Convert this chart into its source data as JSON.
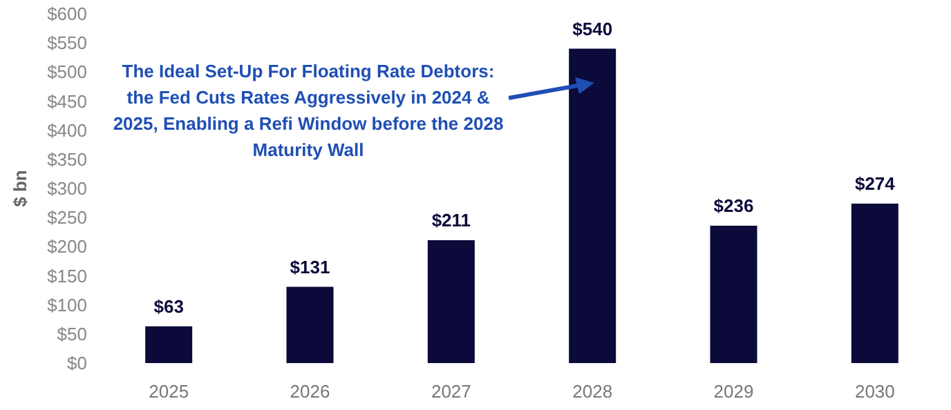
{
  "chart_data": {
    "type": "bar",
    "ylabel": "$ bn",
    "categories": [
      "2025",
      "2026",
      "2027",
      "2028",
      "2029",
      "2030"
    ],
    "values": [
      63,
      131,
      211,
      540,
      236,
      274
    ],
    "color": "#0b0a3a",
    "value_labels": [
      "$63",
      "$131",
      "$211",
      "$540",
      "$236",
      "$274"
    ],
    "ylim": [
      0,
      600
    ],
    "yticks": [
      {
        "value": 0,
        "label": "$0"
      },
      {
        "value": 50,
        "label": "$50"
      },
      {
        "value": 100,
        "label": "$100"
      },
      {
        "value": 150,
        "label": "$150"
      },
      {
        "value": 200,
        "label": "$200"
      },
      {
        "value": 250,
        "label": "$250"
      },
      {
        "value": 300,
        "label": "$300"
      },
      {
        "value": 350,
        "label": "$350"
      },
      {
        "value": 400,
        "label": "$400"
      },
      {
        "value": 450,
        "label": "$450"
      },
      {
        "value": 500,
        "label": "$500"
      },
      {
        "value": 550,
        "label": "$550"
      },
      {
        "value": 600,
        "label": "$600"
      }
    ],
    "grid": false,
    "annotations": [
      "The Ideal Set-Up For Floating Rate Debtors: the Fed Cuts Rates Aggressively in 2024 & 2025, Enabling a Refi Window before the 2028 Maturity Wall"
    ]
  }
}
